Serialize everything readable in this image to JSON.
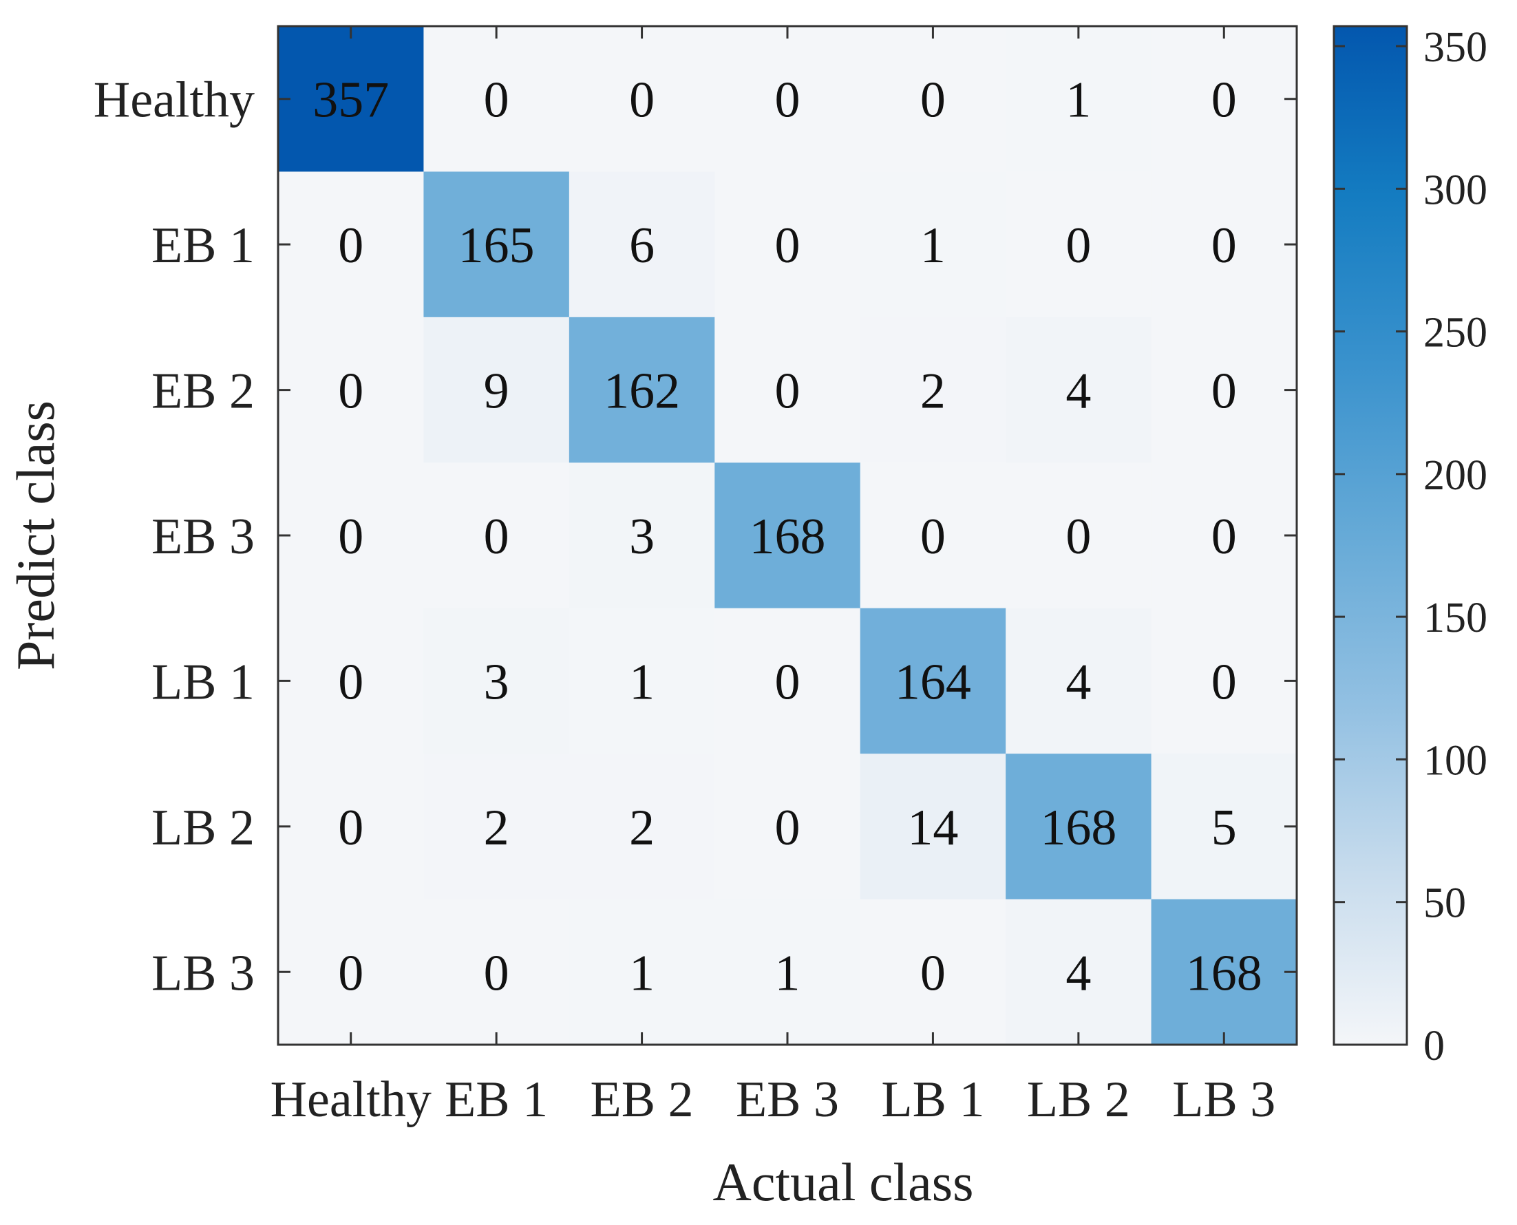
{
  "chart_data": {
    "type": "heatmap",
    "title": "",
    "xlabel": "Actual class",
    "ylabel": "Predict class",
    "x_categories": [
      "Healthy",
      "EB 1",
      "EB 2",
      "EB 3",
      "LB 1",
      "LB 2",
      "LB 3"
    ],
    "y_categories": [
      "Healthy",
      "EB 1",
      "EB 2",
      "EB 3",
      "LB 1",
      "LB 2",
      "LB 3"
    ],
    "values": [
      [
        357,
        0,
        0,
        0,
        0,
        1,
        0
      ],
      [
        0,
        165,
        6,
        0,
        1,
        0,
        0
      ],
      [
        0,
        9,
        162,
        0,
        2,
        4,
        0
      ],
      [
        0,
        0,
        3,
        168,
        0,
        0,
        0
      ],
      [
        0,
        3,
        1,
        0,
        164,
        4,
        0
      ],
      [
        0,
        2,
        2,
        0,
        14,
        168,
        5
      ],
      [
        0,
        0,
        1,
        1,
        0,
        4,
        168
      ]
    ],
    "colorbar": {
      "min": 0,
      "max": 357,
      "ticks": [
        0,
        50,
        100,
        150,
        200,
        250,
        300,
        350
      ],
      "colors": [
        "#f4f6f9",
        "#c8dced",
        "#92c0e2",
        "#66aad7",
        "#3a92cd",
        "#147cc1",
        "#0357ae"
      ]
    },
    "grid": false,
    "legend": "colorbar-right"
  }
}
